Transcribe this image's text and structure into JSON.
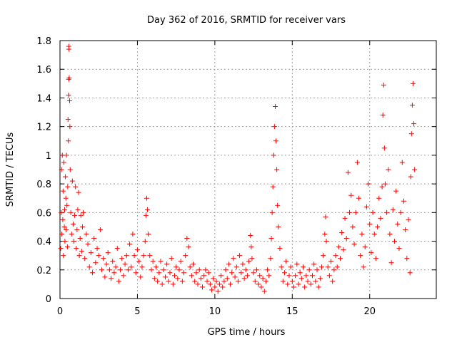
{
  "chart_data": {
    "type": "scatter",
    "title": "Day 362 of 2016, SRMTID for receiver vars",
    "xlabel": "GPS time / hours",
    "ylabel": "SRMTID / TECUs",
    "xlim": [
      0,
      24.3
    ],
    "ylim": [
      0,
      1.8
    ],
    "xticks": [
      0,
      5,
      10,
      15,
      20
    ],
    "xtick_labels": [
      "0",
      "5",
      "10",
      "15",
      "20"
    ],
    "yticks": [
      0,
      0.2,
      0.4,
      0.6,
      0.8,
      1,
      1.2,
      1.4,
      1.6,
      1.8
    ],
    "ytick_labels": [
      "0",
      "0.2",
      "0.4",
      "0.6",
      "0.8",
      "1",
      "1.2",
      "1.4",
      "1.6",
      "1.8"
    ],
    "grid": true,
    "marker": "+",
    "marker_color": "#ff0000",
    "series": [
      {
        "name": "SRMTID",
        "color": "#ff0000",
        "points": [
          [
            0.05,
            0.35
          ],
          [
            0.08,
            0.6
          ],
          [
            0.1,
            0.9
          ],
          [
            0.12,
            0.45
          ],
          [
            0.15,
            1.0
          ],
          [
            0.18,
            0.55
          ],
          [
            0.2,
            0.75
          ],
          [
            0.22,
            0.3
          ],
          [
            0.25,
            0.95
          ],
          [
            0.28,
            0.5
          ],
          [
            0.3,
            0.62
          ],
          [
            0.32,
            0.4
          ],
          [
            0.35,
            0.85
          ],
          [
            0.38,
            0.7
          ],
          [
            0.4,
            0.48
          ],
          [
            0.42,
            1.0
          ],
          [
            0.45,
            0.65
          ],
          [
            0.48,
            0.36
          ],
          [
            0.5,
            0.78
          ],
          [
            0.52,
            1.25
          ],
          [
            0.54,
            1.1
          ],
          [
            0.55,
            1.42
          ],
          [
            0.56,
            1.53
          ],
          [
            0.57,
            1.76
          ],
          [
            0.58,
            1.74
          ],
          [
            0.6,
            1.54
          ],
          [
            0.62,
            1.38
          ],
          [
            0.64,
            1.2
          ],
          [
            0.66,
            0.9
          ],
          [
            0.7,
            0.6
          ],
          [
            0.75,
            0.45
          ],
          [
            0.8,
            0.82
          ],
          [
            0.85,
            0.52
          ],
          [
            0.9,
            0.4
          ],
          [
            0.95,
            0.58
          ],
          [
            1.0,
            0.78
          ],
          [
            1.05,
            0.35
          ],
          [
            1.1,
            0.48
          ],
          [
            1.15,
            0.62
          ],
          [
            1.2,
            0.74
          ],
          [
            1.25,
            0.3
          ],
          [
            1.3,
            0.42
          ],
          [
            1.35,
            0.58
          ],
          [
            1.4,
            0.33
          ],
          [
            1.45,
            0.5
          ],
          [
            1.5,
            0.6
          ],
          [
            1.6,
            0.28
          ],
          [
            1.7,
            0.45
          ],
          [
            1.8,
            0.38
          ],
          [
            1.9,
            0.22
          ],
          [
            2.0,
            0.32
          ],
          [
            2.1,
            0.18
          ],
          [
            2.2,
            0.42
          ],
          [
            2.3,
            0.25
          ],
          [
            2.4,
            0.35
          ],
          [
            2.5,
            0.3
          ],
          [
            2.6,
            0.48
          ],
          [
            2.7,
            0.2
          ],
          [
            2.8,
            0.28
          ],
          [
            2.9,
            0.15
          ],
          [
            3.0,
            0.24
          ],
          [
            3.1,
            0.32
          ],
          [
            3.2,
            0.2
          ],
          [
            3.3,
            0.14
          ],
          [
            3.4,
            0.26
          ],
          [
            3.5,
            0.18
          ],
          [
            3.6,
            0.22
          ],
          [
            3.7,
            0.35
          ],
          [
            3.8,
            0.12
          ],
          [
            3.9,
            0.2
          ],
          [
            4.0,
            0.28
          ],
          [
            4.1,
            0.16
          ],
          [
            4.2,
            0.24
          ],
          [
            4.3,
            0.3
          ],
          [
            4.4,
            0.2
          ],
          [
            4.5,
            0.38
          ],
          [
            4.6,
            0.22
          ],
          [
            4.7,
            0.45
          ],
          [
            4.8,
            0.3
          ],
          [
            4.9,
            0.18
          ],
          [
            5.0,
            0.34
          ],
          [
            5.1,
            0.26
          ],
          [
            5.2,
            0.15
          ],
          [
            5.3,
            0.22
          ],
          [
            5.4,
            0.3
          ],
          [
            5.5,
            0.4
          ],
          [
            5.55,
            0.58
          ],
          [
            5.6,
            0.7
          ],
          [
            5.65,
            0.62
          ],
          [
            5.7,
            0.45
          ],
          [
            5.8,
            0.3
          ],
          [
            5.9,
            0.2
          ],
          [
            6.0,
            0.26
          ],
          [
            6.1,
            0.14
          ],
          [
            6.2,
            0.22
          ],
          [
            6.3,
            0.12
          ],
          [
            6.4,
            0.18
          ],
          [
            6.5,
            0.26
          ],
          [
            6.6,
            0.1
          ],
          [
            6.7,
            0.2
          ],
          [
            6.8,
            0.15
          ],
          [
            6.9,
            0.24
          ],
          [
            7.0,
            0.12
          ],
          [
            7.1,
            0.18
          ],
          [
            7.2,
            0.28
          ],
          [
            7.3,
            0.1
          ],
          [
            7.4,
            0.16
          ],
          [
            7.5,
            0.22
          ],
          [
            7.6,
            0.14
          ],
          [
            7.7,
            0.2
          ],
          [
            7.8,
            0.26
          ],
          [
            7.9,
            0.12
          ],
          [
            8.0,
            0.18
          ],
          [
            8.1,
            0.3
          ],
          [
            8.2,
            0.42
          ],
          [
            8.3,
            0.36
          ],
          [
            8.4,
            0.22
          ],
          [
            8.5,
            0.16
          ],
          [
            8.6,
            0.24
          ],
          [
            8.7,
            0.12
          ],
          [
            8.8,
            0.18
          ],
          [
            8.9,
            0.1
          ],
          [
            9.0,
            0.2
          ],
          [
            9.1,
            0.14
          ],
          [
            9.2,
            0.08
          ],
          [
            9.3,
            0.16
          ],
          [
            9.4,
            0.2
          ],
          [
            9.5,
            0.12
          ],
          [
            9.6,
            0.18
          ],
          [
            9.7,
            0.1
          ],
          [
            9.8,
            0.06
          ],
          [
            9.9,
            0.14
          ],
          [
            10.0,
            0.08
          ],
          [
            10.1,
            0.12
          ],
          [
            10.2,
            0.05
          ],
          [
            10.3,
            0.1
          ],
          [
            10.4,
            0.16
          ],
          [
            10.5,
            0.08
          ],
          [
            10.6,
            0.12
          ],
          [
            10.7,
            0.2
          ],
          [
            10.8,
            0.14
          ],
          [
            10.9,
            0.24
          ],
          [
            11.0,
            0.1
          ],
          [
            11.1,
            0.18
          ],
          [
            11.2,
            0.28
          ],
          [
            11.3,
            0.15
          ],
          [
            11.4,
            0.22
          ],
          [
            11.5,
            0.12
          ],
          [
            11.6,
            0.3
          ],
          [
            11.7,
            0.18
          ],
          [
            11.8,
            0.24
          ],
          [
            11.9,
            0.14
          ],
          [
            12.0,
            0.2
          ],
          [
            12.1,
            0.16
          ],
          [
            12.2,
            0.26
          ],
          [
            12.3,
            0.44
          ],
          [
            12.35,
            0.36
          ],
          [
            12.4,
            0.28
          ],
          [
            12.5,
            0.18
          ],
          [
            12.6,
            0.12
          ],
          [
            12.7,
            0.2
          ],
          [
            12.8,
            0.1
          ],
          [
            12.9,
            0.16
          ],
          [
            13.0,
            0.08
          ],
          [
            13.1,
            0.14
          ],
          [
            13.2,
            0.05
          ],
          [
            13.3,
            0.12
          ],
          [
            13.4,
            0.2
          ],
          [
            13.5,
            0.16
          ],
          [
            13.6,
            0.28
          ],
          [
            13.65,
            0.42
          ],
          [
            13.7,
            0.6
          ],
          [
            13.75,
            0.78
          ],
          [
            13.8,
            1.0
          ],
          [
            13.85,
            1.2
          ],
          [
            13.9,
            1.34
          ],
          [
            13.95,
            1.1
          ],
          [
            14.0,
            0.9
          ],
          [
            14.05,
            0.65
          ],
          [
            14.1,
            0.5
          ],
          [
            14.2,
            0.35
          ],
          [
            14.3,
            0.22
          ],
          [
            14.4,
            0.12
          ],
          [
            14.5,
            0.18
          ],
          [
            14.6,
            0.26
          ],
          [
            14.7,
            0.1
          ],
          [
            14.8,
            0.16
          ],
          [
            14.9,
            0.22
          ],
          [
            15.0,
            0.12
          ],
          [
            15.1,
            0.08
          ],
          [
            15.2,
            0.16
          ],
          [
            15.3,
            0.24
          ],
          [
            15.4,
            0.1
          ],
          [
            15.5,
            0.18
          ],
          [
            15.6,
            0.14
          ],
          [
            15.7,
            0.22
          ],
          [
            15.8,
            0.08
          ],
          [
            15.9,
            0.16
          ],
          [
            16.0,
            0.12
          ],
          [
            16.1,
            0.2
          ],
          [
            16.2,
            0.1
          ],
          [
            16.3,
            0.16
          ],
          [
            16.4,
            0.24
          ],
          [
            16.5,
            0.12
          ],
          [
            16.6,
            0.2
          ],
          [
            16.7,
            0.08
          ],
          [
            16.8,
            0.14
          ],
          [
            16.9,
            0.22
          ],
          [
            17.0,
            0.3
          ],
          [
            17.1,
            0.45
          ],
          [
            17.15,
            0.57
          ],
          [
            17.2,
            0.4
          ],
          [
            17.3,
            0.22
          ],
          [
            17.4,
            0.16
          ],
          [
            17.5,
            0.26
          ],
          [
            17.6,
            0.12
          ],
          [
            17.7,
            0.2
          ],
          [
            17.8,
            0.3
          ],
          [
            17.9,
            0.22
          ],
          [
            18.0,
            0.36
          ],
          [
            18.1,
            0.28
          ],
          [
            18.2,
            0.46
          ],
          [
            18.3,
            0.34
          ],
          [
            18.4,
            0.56
          ],
          [
            18.5,
            0.42
          ],
          [
            18.6,
            0.88
          ],
          [
            18.7,
            0.6
          ],
          [
            18.8,
            0.72
          ],
          [
            18.9,
            0.5
          ],
          [
            19.0,
            0.38
          ],
          [
            19.1,
            0.6
          ],
          [
            19.2,
            0.95
          ],
          [
            19.3,
            0.7
          ],
          [
            19.4,
            0.3
          ],
          [
            19.5,
            0.45
          ],
          [
            19.6,
            0.22
          ],
          [
            19.7,
            0.36
          ],
          [
            19.8,
            0.64
          ],
          [
            19.9,
            0.8
          ],
          [
            20.0,
            0.52
          ],
          [
            20.1,
            0.32
          ],
          [
            20.2,
            0.6
          ],
          [
            20.3,
            0.45
          ],
          [
            20.4,
            0.28
          ],
          [
            20.5,
            0.5
          ],
          [
            20.6,
            0.7
          ],
          [
            20.7,
            0.56
          ],
          [
            20.8,
            0.78
          ],
          [
            20.85,
            1.28
          ],
          [
            20.9,
            1.49
          ],
          [
            20.95,
            1.05
          ],
          [
            21.0,
            0.8
          ],
          [
            21.1,
            0.6
          ],
          [
            21.2,
            0.9
          ],
          [
            21.3,
            0.45
          ],
          [
            21.4,
            0.25
          ],
          [
            21.5,
            0.62
          ],
          [
            21.6,
            0.4
          ],
          [
            21.7,
            0.75
          ],
          [
            21.8,
            0.52
          ],
          [
            21.9,
            0.35
          ],
          [
            22.0,
            0.6
          ],
          [
            22.1,
            0.95
          ],
          [
            22.2,
            0.68
          ],
          [
            22.3,
            0.48
          ],
          [
            22.4,
            0.28
          ],
          [
            22.5,
            0.55
          ],
          [
            22.6,
            0.18
          ],
          [
            22.65,
            0.85
          ],
          [
            22.7,
            1.15
          ],
          [
            22.75,
            1.35
          ],
          [
            22.8,
            1.5
          ],
          [
            22.85,
            1.22
          ],
          [
            22.9,
            0.9
          ]
        ]
      }
    ]
  }
}
